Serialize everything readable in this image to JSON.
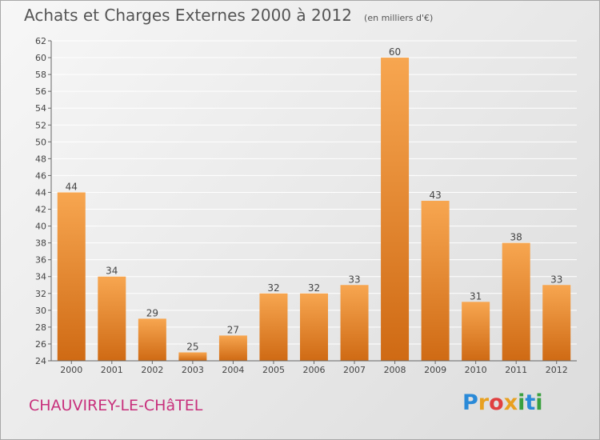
{
  "header": {
    "title": "Achats et Charges Externes 2000 à 2012",
    "subtitle": "(en milliers d'€)"
  },
  "footer": {
    "town": "CHAUVIREY-LE-CHâTEL",
    "logo_letters": [
      "P",
      "r",
      "o",
      "x",
      "i",
      "t",
      "i"
    ],
    "logo_colors": [
      "#2a8ad8",
      "#e8a020",
      "#e04040",
      "#e8a020",
      "#3aa040",
      "#2a8ad8",
      "#3aa040"
    ]
  },
  "colors": {
    "bar_light": "#f7a650",
    "bar_dark": "#cf6a14",
    "axis": "#666666",
    "grid": "#ffffff"
  },
  "chart_data": {
    "type": "bar",
    "categories": [
      "2000",
      "2001",
      "2002",
      "2003",
      "2004",
      "2005",
      "2006",
      "2007",
      "2008",
      "2009",
      "2010",
      "2011",
      "2012"
    ],
    "values": [
      44,
      34,
      29,
      25,
      27,
      32,
      32,
      33,
      60,
      43,
      31,
      38,
      33
    ],
    "ylim": [
      24,
      62
    ],
    "yticks": [
      24,
      26,
      28,
      30,
      32,
      34,
      36,
      38,
      40,
      42,
      44,
      46,
      48,
      50,
      52,
      54,
      56,
      58,
      60,
      62
    ],
    "grid": true,
    "data_labels": true
  }
}
